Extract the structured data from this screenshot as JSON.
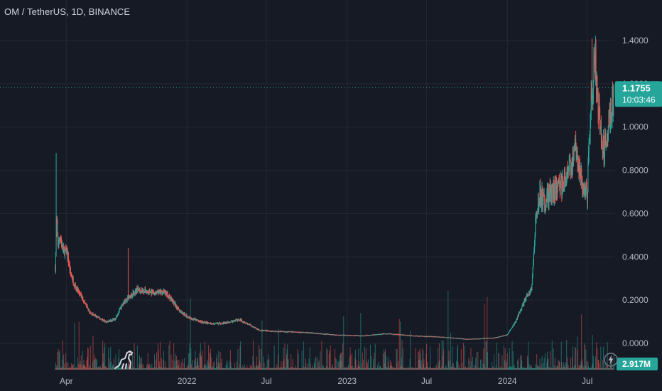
{
  "header": {
    "symbol_title": "OM / TetherUS, 1D, BINANCE"
  },
  "icons": {
    "logo": "tradingview-dino-logo-icon",
    "bolt": "lightning-bolt-icon"
  },
  "colors": {
    "background": "#161a25",
    "grid": "#242833",
    "up": "#26a69a",
    "down": "#ef5350",
    "price_line": "#26a69a",
    "text": "#b2b5be"
  },
  "chart_data": {
    "type": "candlestick",
    "symbol": "OM / TetherUS",
    "interval": "1D",
    "exchange": "BINANCE",
    "y_axis": {
      "ticks": [
        1.4,
        1.2,
        1.0,
        0.8,
        0.6,
        0.4,
        0.2,
        0.0
      ],
      "tick_labels": [
        "1.4000",
        "1.2000",
        "1.0000",
        "0.8000",
        "0.6000",
        "0.4000",
        "0.2000",
        "0.0000"
      ],
      "range": [
        -0.02,
        1.42
      ]
    },
    "x_axis": {
      "tick_labels": [
        "Apr",
        "2022",
        "Jul",
        "2023",
        "Jul",
        "2024",
        "Jul"
      ],
      "ticks": [
        "2021-04-01",
        "2022-01-01",
        "2022-07-01",
        "2023-01-01",
        "2023-07-01",
        "2024-01-01",
        "2024-07-01"
      ],
      "range": [
        "2020-11-01",
        "2024-09-01"
      ]
    },
    "last_price": {
      "value": 1.1755,
      "label": "1.1755",
      "countdown": "10:03:46"
    },
    "volume_label": "2.917M",
    "price_series": [
      [
        "2021-03-07",
        0.35
      ],
      [
        "2021-03-10",
        0.55
      ],
      [
        "2021-03-14",
        0.45
      ],
      [
        "2021-03-18",
        0.5
      ],
      [
        "2021-03-24",
        0.43
      ],
      [
        "2021-04-03",
        0.42
      ],
      [
        "2021-04-10",
        0.33
      ],
      [
        "2021-04-18",
        0.28
      ],
      [
        "2021-04-28",
        0.24
      ],
      [
        "2021-05-10",
        0.2
      ],
      [
        "2021-05-25",
        0.14
      ],
      [
        "2021-06-12",
        0.12
      ],
      [
        "2021-07-01",
        0.1
      ],
      [
        "2021-07-20",
        0.11
      ],
      [
        "2021-08-10",
        0.19
      ],
      [
        "2021-08-25",
        0.22
      ],
      [
        "2021-09-10",
        0.25
      ],
      [
        "2021-10-01",
        0.24
      ],
      [
        "2021-10-20",
        0.23
      ],
      [
        "2021-11-10",
        0.24
      ],
      [
        "2021-11-28",
        0.2
      ],
      [
        "2021-12-15",
        0.15
      ],
      [
        "2022-01-05",
        0.12
      ],
      [
        "2022-02-01",
        0.1
      ],
      [
        "2022-03-01",
        0.09
      ],
      [
        "2022-04-01",
        0.095
      ],
      [
        "2022-05-01",
        0.11
      ],
      [
        "2022-05-20",
        0.09
      ],
      [
        "2022-06-15",
        0.06
      ],
      [
        "2022-08-01",
        0.055
      ],
      [
        "2022-10-01",
        0.05
      ],
      [
        "2022-12-01",
        0.04
      ],
      [
        "2023-02-01",
        0.035
      ],
      [
        "2023-04-01",
        0.045
      ],
      [
        "2023-06-01",
        0.035
      ],
      [
        "2023-08-01",
        0.03
      ],
      [
        "2023-10-01",
        0.02
      ],
      [
        "2023-12-01",
        0.025
      ],
      [
        "2024-01-01",
        0.04
      ],
      [
        "2024-01-20",
        0.1
      ],
      [
        "2024-02-10",
        0.2
      ],
      [
        "2024-02-25",
        0.25
      ],
      [
        "2024-03-05",
        0.55
      ],
      [
        "2024-03-15",
        0.7
      ],
      [
        "2024-03-25",
        0.65
      ],
      [
        "2024-04-10",
        0.7
      ],
      [
        "2024-05-01",
        0.72
      ],
      [
        "2024-05-20",
        0.8
      ],
      [
        "2024-06-05",
        0.9
      ],
      [
        "2024-06-20",
        0.75
      ],
      [
        "2024-07-01",
        0.7
      ],
      [
        "2024-07-10",
        1.15
      ],
      [
        "2024-07-20",
        1.3
      ],
      [
        "2024-07-28",
        1.05
      ],
      [
        "2024-08-05",
        0.9
      ],
      [
        "2024-08-15",
        0.95
      ],
      [
        "2024-08-25",
        1.1
      ],
      [
        "2024-08-31",
        1.1755
      ]
    ],
    "spikes": [
      [
        "2021-03-09",
        0.88
      ],
      [
        "2021-08-20",
        0.44
      ],
      [
        "2024-07-12",
        1.41
      ]
    ]
  }
}
